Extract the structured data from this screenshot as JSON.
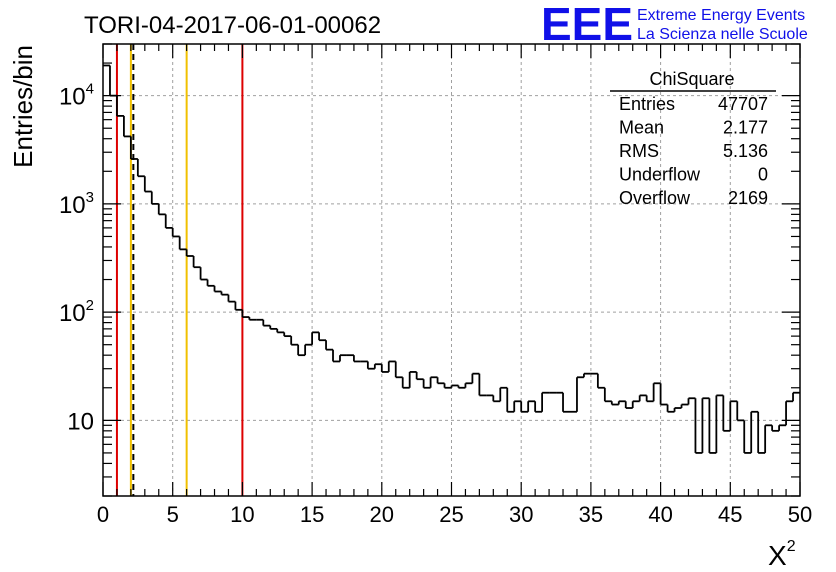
{
  "header": {
    "run_title": "TORI-04-2017-06-01-00062",
    "logo_text": "EEE",
    "logo_line1": "Extreme Energy Events",
    "logo_line2": "La Scienza nelle Scuole"
  },
  "stats": {
    "title": "ChiSquare",
    "rows": [
      {
        "label": "Entries",
        "value": "47707"
      },
      {
        "label": "Mean",
        "value": "2.177"
      },
      {
        "label": "RMS",
        "value": "5.136"
      },
      {
        "label": "Underflow",
        "value": "0"
      },
      {
        "label": "Overflow",
        "value": "2169"
      }
    ]
  },
  "chart_data": {
    "type": "histogram",
    "xlabel": "X",
    "xlabel_sup": "2",
    "ylabel": "Entries/bin",
    "xlim": [
      0,
      50
    ],
    "ylim": [
      2,
      30000
    ],
    "yscale": "log",
    "grid": true,
    "xticks": [
      0,
      5,
      10,
      15,
      20,
      25,
      30,
      35,
      40,
      45,
      50
    ],
    "xtick_labels": [
      "0",
      "5",
      "10",
      "15",
      "20",
      "25",
      "30",
      "35",
      "40",
      "45",
      "50"
    ],
    "ytick_labels": [
      {
        "value": 10,
        "base": "10",
        "exp": ""
      },
      {
        "value": 100,
        "base": "10",
        "exp": "2"
      },
      {
        "value": 1000,
        "base": "10",
        "exp": "3"
      },
      {
        "value": 10000,
        "base": "10",
        "exp": "4"
      }
    ],
    "bin_width": 0.5,
    "values": [
      19000,
      10000,
      6500,
      4200,
      2600,
      1800,
      1300,
      1000,
      800,
      600,
      500,
      380,
      330,
      260,
      200,
      175,
      155,
      145,
      125,
      105,
      90,
      85,
      85,
      75,
      70,
      65,
      60,
      50,
      40,
      50,
      65,
      55,
      45,
      35,
      40,
      40,
      35,
      35,
      30,
      33,
      28,
      35,
      25,
      20,
      28,
      24,
      20,
      25,
      22,
      20,
      21,
      20,
      22,
      27,
      17,
      17,
      15,
      20,
      12,
      15,
      12,
      15,
      12,
      18,
      18,
      18,
      12,
      12,
      25,
      27,
      27,
      20,
      15,
      14,
      15,
      13,
      15,
      17,
      15,
      22,
      14,
      12,
      13,
      14,
      16,
      5,
      16,
      5,
      17,
      8,
      15,
      10,
      5,
      12,
      5,
      9,
      8,
      9,
      15,
      18
    ],
    "vlines": [
      {
        "x": 1,
        "color": "#dd0000",
        "style": "solid"
      },
      {
        "x": 2,
        "color": "#f0c000",
        "style": "solid"
      },
      {
        "x": 2.177,
        "color": "#000000",
        "style": "dashed"
      },
      {
        "x": 6,
        "color": "#f0c000",
        "style": "solid"
      },
      {
        "x": 10,
        "color": "#dd0000",
        "style": "solid"
      }
    ],
    "colors": {
      "histogram": "#000000",
      "logo": "#1010e8",
      "grid": "#a0a0a0"
    }
  }
}
